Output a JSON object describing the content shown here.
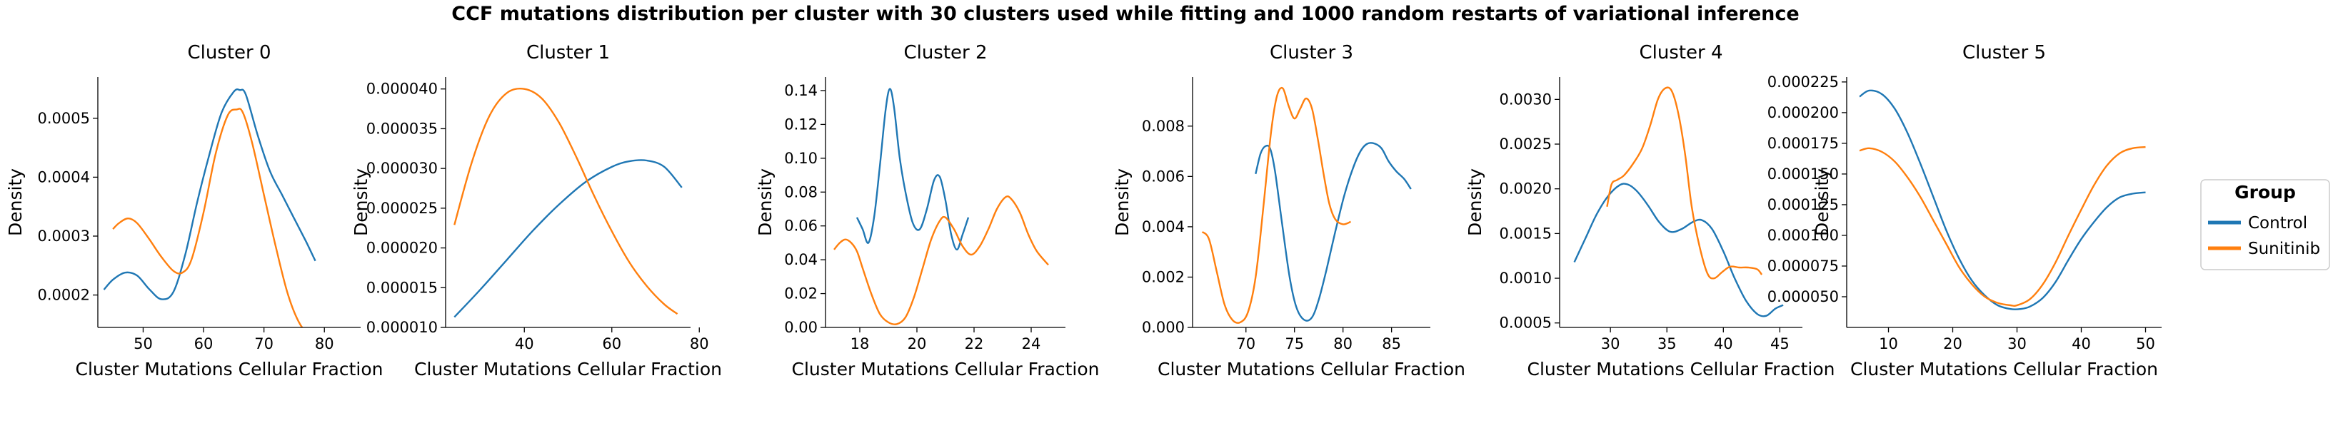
{
  "figure": {
    "title": "CCF mutations distribution per cluster with 30 clusters used while fitting and 1000 random restarts of variational inference"
  },
  "legend": {
    "title": "Group",
    "entries": [
      {
        "label": "Control",
        "color": "#1f77b4"
      },
      {
        "label": "Sunitinib",
        "color": "#ff7f0e"
      }
    ]
  },
  "chart_data": [
    {
      "type": "line",
      "title": "Cluster 0",
      "xlabel": "Cluster Mutations Cellular Fraction",
      "ylabel": "Density",
      "xlim": [
        42.5,
        86
      ],
      "ylim": [
        0.000145,
        0.00057
      ],
      "xticks": [
        50,
        60,
        70,
        80
      ],
      "xtick_labels": [
        "50",
        "60",
        "70",
        "80"
      ],
      "yticks": [
        0.0002,
        0.0003,
        0.0004,
        0.0005
      ],
      "ytick_labels": [
        "0.0002",
        "0.0003",
        "0.0004",
        "0.0005"
      ],
      "series": [
        {
          "name": "Control",
          "color": "#1f77b4",
          "x": [
            43.5,
            45,
            47,
            49,
            51,
            53,
            55,
            57,
            59,
            61,
            63,
            65,
            66,
            67,
            69,
            71,
            73,
            75,
            77,
            78.5
          ],
          "y": [
            0.000209,
            0.000226,
            0.000238,
            0.000233,
            0.00021,
            0.000193,
            0.000205,
            0.00027,
            0.00036,
            0.00044,
            0.00051,
            0.000545,
            0.000548,
            0.00054,
            0.00047,
            0.00041,
            0.00037,
            0.00033,
            0.00029,
            0.000258
          ]
        },
        {
          "name": "Sunitinib",
          "color": "#ff7f0e",
          "x": [
            45,
            46,
            47.5,
            49,
            51,
            53,
            55,
            56.5,
            58,
            60,
            62,
            64,
            65.5,
            66.5,
            68,
            70,
            72,
            74,
            76,
            78,
            80,
            82,
            84,
            85.5
          ],
          "y": [
            0.000312,
            0.000322,
            0.00033,
            0.000322,
            0.000295,
            0.000265,
            0.000241,
            0.000238,
            0.00026,
            0.00034,
            0.00044,
            0.000505,
            0.000515,
            0.00051,
            0.00046,
            0.00037,
            0.00028,
            0.0002,
            0.00015,
            0.00013,
            0.000128,
            0.000131,
            0.000136,
            0.000134
          ]
        }
      ]
    },
    {
      "type": "line",
      "title": "Cluster 1",
      "xlabel": "Cluster Mutations Cellular Fraction",
      "ylabel": "Density",
      "xlim": [
        22,
        78
      ],
      "ylim": [
        1e-05,
        4.15e-05
      ],
      "xticks": [
        40,
        60,
        80
      ],
      "xtick_labels": [
        "40",
        "60",
        "80"
      ],
      "yticks": [
        1e-05,
        1.5e-05,
        2e-05,
        2.5e-05,
        3e-05,
        3.5e-05,
        4e-05
      ],
      "ytick_labels": [
        "0.000010",
        "0.000015",
        "0.000020",
        "0.000025",
        "0.000030",
        "0.000035",
        "0.000040"
      ],
      "series": [
        {
          "name": "Control",
          "color": "#1f77b4",
          "x": [
            24,
            30,
            36,
            42,
            48,
            54,
            60,
            64,
            68,
            72,
            76
          ],
          "y": [
            1.13e-05,
            1.48e-05,
            1.85e-05,
            2.22e-05,
            2.55e-05,
            2.83e-05,
            3.02e-05,
            3.09e-05,
            3.1e-05,
            3.02e-05,
            2.76e-05
          ]
        },
        {
          "name": "Sunitinib",
          "color": "#ff7f0e",
          "x": [
            24,
            28,
            32,
            36,
            40,
            44,
            48,
            52,
            56,
            60,
            64,
            68,
            72,
            75
          ],
          "y": [
            2.29e-05,
            3.08e-05,
            3.66e-05,
            3.95e-05,
            4e-05,
            3.88e-05,
            3.57e-05,
            3.13e-05,
            2.65e-05,
            2.21e-05,
            1.82e-05,
            1.52e-05,
            1.29e-05,
            1.17e-05
          ]
        }
      ]
    },
    {
      "type": "line",
      "title": "Cluster 2",
      "xlabel": "Cluster Mutations Cellular Fraction",
      "ylabel": "Density",
      "xlim": [
        16.8,
        25.2
      ],
      "ylim": [
        0,
        0.148
      ],
      "xticks": [
        18,
        20,
        22,
        24
      ],
      "xtick_labels": [
        "18",
        "20",
        "22",
        "24"
      ],
      "yticks": [
        0,
        0.02,
        0.04,
        0.06,
        0.08,
        0.1,
        0.12,
        0.14
      ],
      "ytick_labels": [
        "0.00",
        "0.02",
        "0.04",
        "0.06",
        "0.08",
        "0.10",
        "0.12",
        "0.14"
      ],
      "series": [
        {
          "name": "Control",
          "color": "#1f77b4",
          "x": [
            17.9,
            18.1,
            18.3,
            18.5,
            18.7,
            18.9,
            19.05,
            19.2,
            19.4,
            19.6,
            19.85,
            20.1,
            20.35,
            20.6,
            20.8,
            21.0,
            21.2,
            21.4,
            21.6,
            21.8
          ],
          "y": [
            0.065,
            0.058,
            0.05,
            0.065,
            0.095,
            0.128,
            0.141,
            0.13,
            0.1,
            0.08,
            0.062,
            0.058,
            0.07,
            0.087,
            0.089,
            0.075,
            0.055,
            0.046,
            0.055,
            0.065
          ]
        },
        {
          "name": "Sunitinib",
          "color": "#ff7f0e",
          "x": [
            17.1,
            17.3,
            17.5,
            17.7,
            17.9,
            18.1,
            18.4,
            18.7,
            19.0,
            19.3,
            19.6,
            19.9,
            20.2,
            20.5,
            20.8,
            21.0,
            21.3,
            21.6,
            21.9,
            22.2,
            22.5,
            22.8,
            23.1,
            23.3,
            23.6,
            23.9,
            24.2,
            24.6
          ],
          "y": [
            0.046,
            0.05,
            0.052,
            0.05,
            0.045,
            0.035,
            0.02,
            0.008,
            0.003,
            0.002,
            0.006,
            0.018,
            0.035,
            0.052,
            0.063,
            0.065,
            0.058,
            0.048,
            0.043,
            0.048,
            0.058,
            0.07,
            0.077,
            0.076,
            0.068,
            0.055,
            0.045,
            0.037
          ]
        }
      ]
    },
    {
      "type": "line",
      "title": "Cluster 3",
      "xlabel": "Cluster Mutations Cellular Fraction",
      "ylabel": "Density",
      "xlim": [
        64.5,
        89
      ],
      "ylim": [
        0,
        0.00995
      ],
      "xticks": [
        70,
        75,
        80,
        85
      ],
      "xtick_labels": [
        "70",
        "75",
        "80",
        "85"
      ],
      "yticks": [
        0,
        0.002,
        0.004,
        0.006,
        0.008
      ],
      "ytick_labels": [
        "0.000",
        "0.002",
        "0.004",
        "0.006",
        "0.008"
      ],
      "series": [
        {
          "name": "Control",
          "color": "#1f77b4",
          "x": [
            71,
            71.5,
            72,
            72.5,
            73,
            73.7,
            74.5,
            75.2,
            76,
            76.8,
            77.5,
            78.3,
            79.2,
            80.1,
            81,
            81.8,
            82.5,
            83.3,
            84,
            84.7,
            85.5,
            86.3,
            87
          ],
          "y": [
            0.0061,
            0.0069,
            0.0072,
            0.0071,
            0.0062,
            0.0042,
            0.002,
            0.0008,
            0.0003,
            0.0004,
            0.0011,
            0.0023,
            0.0038,
            0.0052,
            0.0063,
            0.007,
            0.0073,
            0.0073,
            0.0071,
            0.0066,
            0.0062,
            0.0059,
            0.0055
          ]
        },
        {
          "name": "Sunitinib",
          "color": "#ff7f0e",
          "x": [
            65.5,
            66.2,
            67,
            67.8,
            68.6,
            69.4,
            70.2,
            71,
            71.8,
            72.6,
            73.2,
            73.8,
            74.4,
            75,
            75.6,
            76.2,
            76.8,
            77.4,
            78,
            78.6,
            79.2,
            80,
            80.8
          ],
          "y": [
            0.0038,
            0.0035,
            0.0022,
            0.0009,
            0.0003,
            0.0002,
            0.0006,
            0.002,
            0.0048,
            0.0078,
            0.0092,
            0.0095,
            0.0088,
            0.0083,
            0.0087,
            0.0091,
            0.0087,
            0.0075,
            0.0061,
            0.0049,
            0.0043,
            0.0041,
            0.0042
          ]
        }
      ]
    },
    {
      "type": "line",
      "title": "Cluster 4",
      "xlabel": "Cluster Mutations Cellular Fraction",
      "ylabel": "Density",
      "xlim": [
        25.5,
        47
      ],
      "ylim": [
        0.00045,
        0.00325
      ],
      "xticks": [
        30,
        35,
        40,
        45
      ],
      "xtick_labels": [
        "30",
        "35",
        "40",
        "45"
      ],
      "yticks": [
        0.0005,
        0.001,
        0.0015,
        0.002,
        0.0025,
        0.003
      ],
      "ytick_labels": [
        "0.0005",
        "0.0010",
        "0.0015",
        "0.0020",
        "0.0025",
        "0.0030"
      ],
      "series": [
        {
          "name": "Control",
          "color": "#1f77b4",
          "x": [
            26.8,
            27.8,
            28.8,
            29.8,
            30.8,
            31.5,
            32.3,
            33.3,
            34.3,
            35.3,
            36.3,
            37.3,
            38.1,
            39,
            40,
            41,
            42,
            43,
            43.8,
            44.6,
            45.3
          ],
          "y": [
            0.00118,
            0.00145,
            0.00172,
            0.00192,
            0.00204,
            0.00205,
            0.00198,
            0.00182,
            0.00163,
            0.00152,
            0.00155,
            0.00163,
            0.00165,
            0.00155,
            0.0013,
            0.001,
            0.00075,
            0.0006,
            0.00058,
            0.00066,
            0.0007
          ]
        },
        {
          "name": "Sunitinib",
          "color": "#ff7f0e",
          "x": [
            29.7,
            30.1,
            30.6,
            31.2,
            32,
            32.8,
            33.5,
            34.2,
            34.8,
            35.4,
            36,
            36.6,
            37.2,
            37.9,
            38.6,
            39.2,
            39.9,
            40.6,
            41.4,
            42.2,
            43,
            43.4
          ],
          "y": [
            0.0018,
            0.00205,
            0.0021,
            0.00215,
            0.00228,
            0.00245,
            0.0027,
            0.003,
            0.00312,
            0.0031,
            0.00285,
            0.0024,
            0.0018,
            0.00135,
            0.00105,
            0.001,
            0.00107,
            0.00113,
            0.00112,
            0.00112,
            0.0011,
            0.00104
          ]
        }
      ]
    },
    {
      "type": "line",
      "title": "Cluster 5",
      "xlabel": "Cluster Mutations Cellular Fraction",
      "ylabel": "Density",
      "xlim": [
        3.5,
        52.5
      ],
      "ylim": [
        2.5e-05,
        0.000229
      ],
      "xticks": [
        10,
        20,
        30,
        40,
        50
      ],
      "xtick_labels": [
        "10",
        "20",
        "30",
        "40",
        "50"
      ],
      "yticks": [
        5e-05,
        7.5e-05,
        0.0001,
        0.000125,
        0.00015,
        0.000175,
        0.0002,
        0.000225
      ],
      "ytick_labels": [
        "0.000050",
        "0.000075",
        "0.000100",
        "0.000125",
        "0.000150",
        "0.000175",
        "0.000200",
        "0.000225"
      ],
      "series": [
        {
          "name": "Control",
          "color": "#1f77b4",
          "x": [
            5.5,
            7,
            9,
            11,
            13,
            15,
            17,
            19,
            21,
            23,
            25,
            27,
            29,
            30.5,
            32,
            34,
            36,
            38,
            40,
            42,
            44,
            46,
            48,
            50
          ],
          "y": [
            0.000213,
            0.000218,
            0.000215,
            0.000203,
            0.000183,
            0.000158,
            0.000131,
            0.000104,
            8.1e-05,
            6.3e-05,
            5.1e-05,
            4.3e-05,
            4e-05,
            4e-05,
            4.2e-05,
            4.9e-05,
            6.2e-05,
            8e-05,
            9.7e-05,
            0.000111,
            0.000123,
            0.000131,
            0.000134,
            0.000135
          ]
        },
        {
          "name": "Sunitinib",
          "color": "#ff7f0e",
          "x": [
            5.5,
            7,
            9,
            11,
            13,
            15,
            17,
            19,
            21,
            23,
            25,
            27,
            29,
            30,
            32,
            34,
            36,
            38,
            40,
            42,
            44,
            46,
            48,
            50
          ],
          "y": [
            0.000169,
            0.000171,
            0.000168,
            0.00016,
            0.000147,
            0.000131,
            0.000112,
            9.3e-05,
            7.4e-05,
            6e-05,
            5e-05,
            4.5e-05,
            4.3e-05,
            4.3e-05,
            4.8e-05,
            6e-05,
            7.8e-05,
            0.0001,
            0.000121,
            0.000141,
            0.000157,
            0.000167,
            0.000171,
            0.000172
          ]
        }
      ]
    }
  ]
}
